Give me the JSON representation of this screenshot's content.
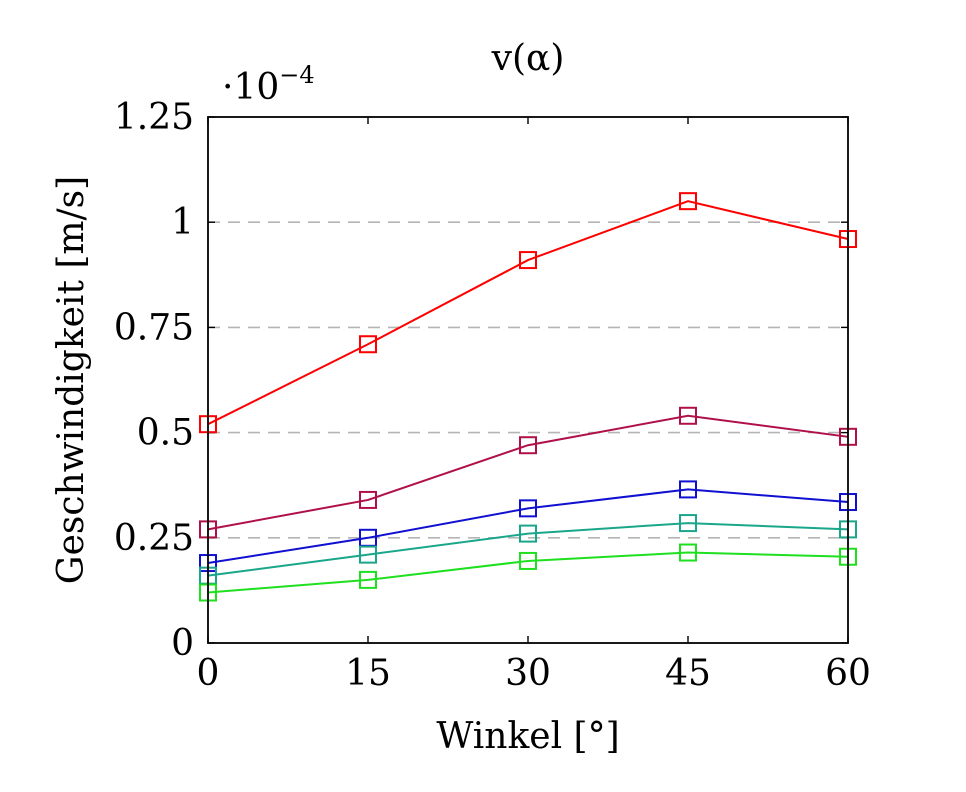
{
  "chart_data": {
    "type": "line",
    "title": "v(α)",
    "xlabel": "Winkel [°]",
    "ylabel": "Geschwindigkeit [m/s]",
    "y_scale_factor": "·10",
    "y_scale_exponent": "−4",
    "x": [
      0,
      15,
      30,
      45,
      60
    ],
    "x_tick_labels": [
      "0",
      "15",
      "30",
      "45",
      "60"
    ],
    "y_ticks": [
      0,
      0.25,
      0.5,
      0.75,
      1,
      1.25
    ],
    "y_tick_labels": [
      "0",
      "0.25",
      "0.5",
      "0.75",
      "1",
      "1.25"
    ],
    "xlim": [
      0,
      60
    ],
    "ylim": [
      0,
      1.25
    ],
    "grid": "horizontal dashed",
    "marker": "square",
    "series": [
      {
        "color": "#ff0000",
        "values": [
          0.52,
          0.71,
          0.91,
          1.05,
          0.96
        ]
      },
      {
        "color": "#b0104a",
        "values": [
          0.27,
          0.34,
          0.47,
          0.54,
          0.49
        ]
      },
      {
        "color": "#1010d0",
        "values": [
          0.19,
          0.25,
          0.32,
          0.365,
          0.335
        ]
      },
      {
        "color": "#1aa68a",
        "values": [
          0.16,
          0.21,
          0.26,
          0.285,
          0.27
        ]
      },
      {
        "color": "#1ee01e",
        "values": [
          0.12,
          0.15,
          0.195,
          0.215,
          0.205
        ]
      }
    ]
  }
}
